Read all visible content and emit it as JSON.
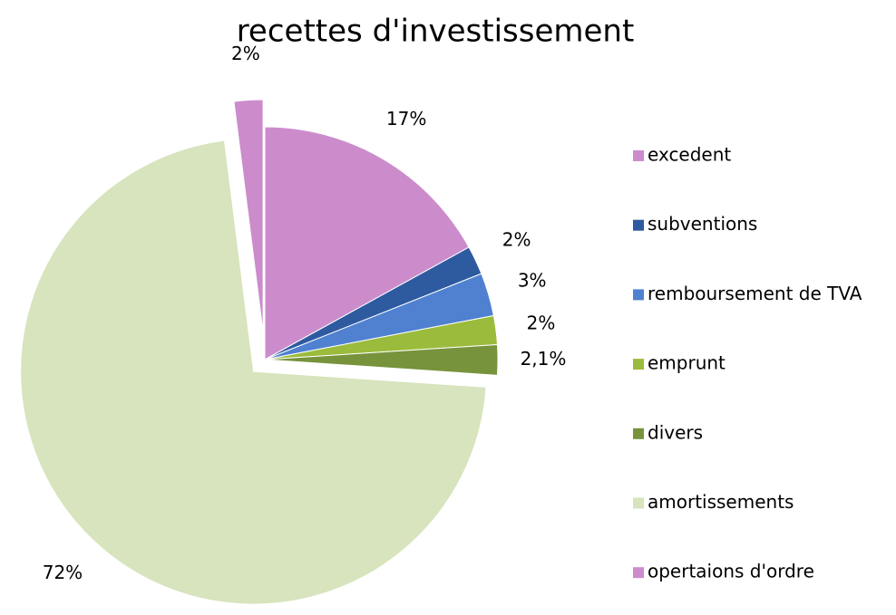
{
  "chart_data": {
    "type": "pie",
    "title": "recettes d'investissement",
    "categories": [
      "excedent",
      "subventions",
      "remboursement de TVA",
      "emprunt",
      "divers",
      "amortissements",
      "opertaions d'ordre"
    ],
    "values": [
      17,
      2,
      3,
      2,
      2.1,
      72,
      2
    ],
    "value_labels": [
      "17%",
      "2%",
      "3%",
      "2%",
      "2,1%",
      "72%",
      "2%"
    ],
    "colors": [
      "#cc8ccc",
      "#2e5aa0",
      "#4f81d0",
      "#9bbb3c",
      "#77933c",
      "#d7e4bd",
      "#cc8ccc"
    ],
    "exploded": [
      false,
      false,
      false,
      false,
      false,
      true,
      true
    ],
    "legend": "right"
  }
}
